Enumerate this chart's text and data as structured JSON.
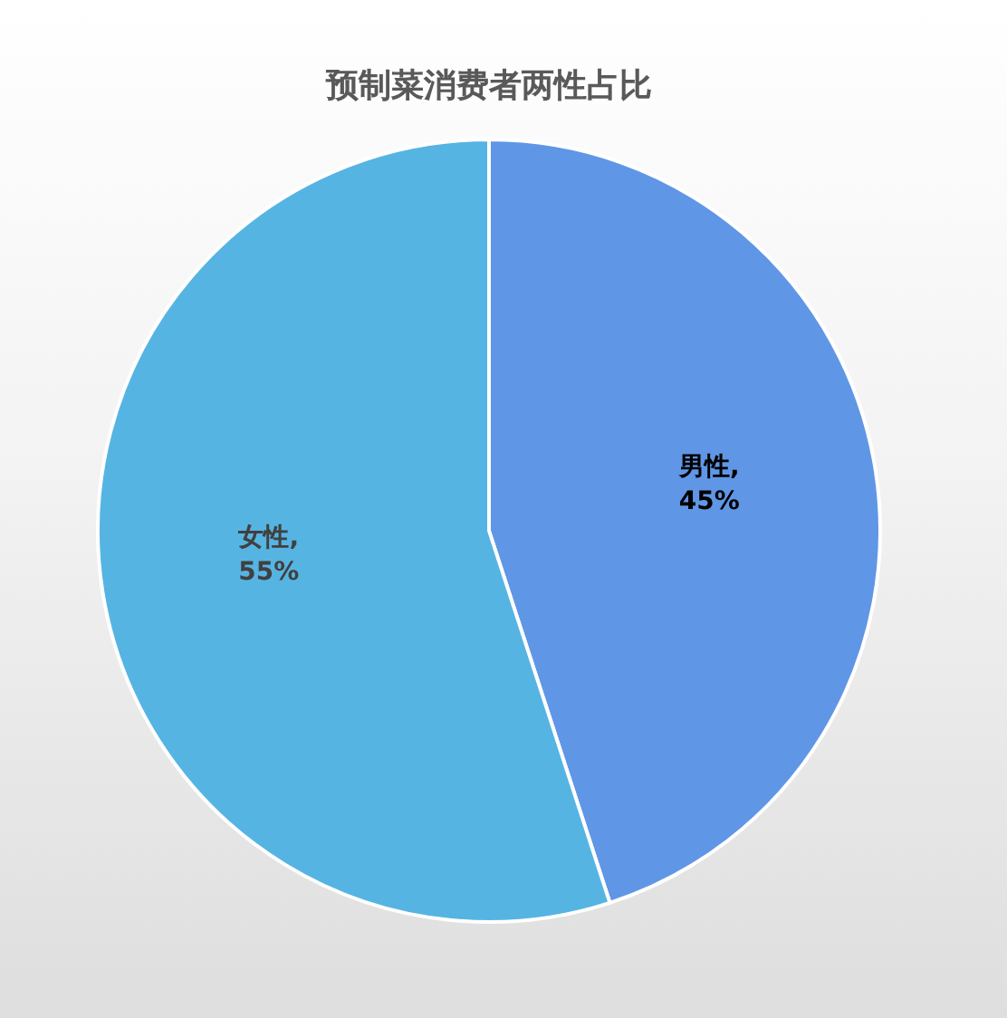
{
  "chart_data": {
    "type": "pie",
    "title": "预制菜消费者两性占比",
    "values": [
      45,
      55
    ],
    "colors": [
      "#6096e6",
      "#56b4e2"
    ],
    "value_labels": [
      "男性,\n45%",
      "女性,\n55%"
    ]
  }
}
